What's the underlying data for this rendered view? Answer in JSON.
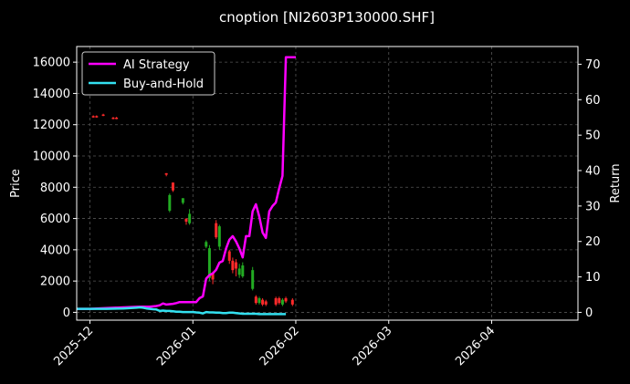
{
  "chart_data": {
    "type": "line",
    "title": "cnoption [NI2603P130000.SHF]",
    "ylabel_left": "Price",
    "ylabel_right": "Return",
    "x_ticks": [
      "2025-12",
      "2026-01",
      "2026-02",
      "2026-03",
      "2026-04"
    ],
    "x_tick_days": [
      0,
      31,
      62,
      90,
      121
    ],
    "xlim_days": [
      -4,
      147
    ],
    "y_left_ticks": [
      "0",
      "2000",
      "4000",
      "6000",
      "8000",
      "10000",
      "12000",
      "14000",
      "16000"
    ],
    "y_left_tick_values": [
      0,
      2000,
      4000,
      6000,
      8000,
      10000,
      12000,
      14000,
      16000
    ],
    "ylim_left": [
      -500,
      17000
    ],
    "y_right_ticks": [
      "0",
      "10",
      "20",
      "30",
      "40",
      "50",
      "60",
      "70"
    ],
    "y_right_tick_values": [
      0,
      10,
      20,
      30,
      40,
      50,
      60,
      70
    ],
    "ylim_right": [
      -2.2,
      75
    ],
    "grid": true,
    "legend_position": "top-left",
    "colors": {
      "strategy": "#ff00ff",
      "buyhold": "#33e0f0",
      "up": "#22aa22",
      "down": "#ff2a2a",
      "grid": "#555555"
    },
    "series": [
      {
        "name": "AI Strategy",
        "x": [
          -4,
          0,
          5,
          10,
          15,
          18,
          20,
          21,
          22,
          23,
          24,
          25,
          26,
          27,
          28,
          29,
          30,
          31,
          32,
          33,
          34,
          35,
          36,
          37,
          38,
          39,
          40,
          41,
          42,
          43,
          44,
          45,
          46,
          47,
          48,
          49,
          50,
          51,
          52,
          53,
          54,
          55,
          56,
          57,
          58,
          59,
          60,
          61,
          62
        ],
        "values": [
          1.0,
          1.0,
          1.2,
          1.4,
          1.6,
          1.6,
          1.8,
          2.0,
          2.5,
          2.2,
          2.3,
          2.4,
          2.6,
          2.9,
          2.9,
          2.9,
          2.9,
          2.9,
          2.9,
          4.0,
          4.5,
          9.5,
          10.5,
          11.0,
          12.0,
          14.0,
          14.5,
          18.0,
          20.5,
          21.5,
          20.0,
          18.0,
          15.5,
          21.5,
          21.5,
          28.5,
          30.5,
          27.0,
          22.5,
          21.0,
          28.5,
          30.0,
          31.0,
          35.0,
          38.5,
          72.0,
          72.0,
          72.0,
          72.0
        ]
      },
      {
        "name": "Buy-and-Hold",
        "x": [
          -4,
          0,
          5,
          10,
          14,
          15,
          16,
          17,
          18,
          19,
          20,
          21,
          22,
          23,
          24,
          25,
          26,
          27,
          28,
          29,
          30,
          31,
          32,
          33,
          34,
          35,
          36,
          37,
          38,
          39,
          40,
          41,
          42,
          43,
          44,
          45,
          46,
          47,
          48,
          49,
          50,
          51,
          52,
          53,
          54,
          55,
          56,
          57,
          58,
          59
        ],
        "values": [
          1.0,
          1.0,
          1.0,
          1.1,
          1.3,
          1.4,
          1.3,
          1.1,
          1.0,
          0.9,
          0.8,
          0.4,
          0.5,
          0.4,
          0.4,
          0.3,
          0.2,
          0.2,
          0.1,
          0.1,
          0.1,
          0.1,
          0.0,
          -0.1,
          -0.3,
          0.1,
          0.0,
          0.0,
          -0.1,
          -0.1,
          -0.2,
          -0.2,
          -0.1,
          -0.1,
          -0.2,
          -0.3,
          -0.4,
          -0.4,
          -0.4,
          -0.4,
          -0.4,
          -0.5,
          -0.5,
          -0.5,
          -0.5,
          -0.5,
          -0.5,
          -0.5,
          -0.5,
          -0.5
        ]
      }
    ],
    "candles": [
      {
        "x": 1,
        "open": 12550,
        "close": 12500,
        "high": 12600,
        "low": 12450,
        "dir": "down"
      },
      {
        "x": 2,
        "open": 12550,
        "close": 12500,
        "high": 12600,
        "low": 12450,
        "dir": "down"
      },
      {
        "x": 4,
        "open": 12650,
        "close": 12600,
        "high": 12700,
        "low": 12550,
        "dir": "down"
      },
      {
        "x": 7,
        "open": 12450,
        "close": 12400,
        "high": 12500,
        "low": 12350,
        "dir": "down"
      },
      {
        "x": 8,
        "open": 12450,
        "close": 12380,
        "high": 12500,
        "low": 12350,
        "dir": "down"
      },
      {
        "x": 23,
        "open": 8900,
        "close": 8800,
        "high": 8900,
        "low": 8700,
        "dir": "down"
      },
      {
        "x": 24,
        "open": 6500,
        "close": 7500,
        "high": 7600,
        "low": 6400,
        "dir": "up"
      },
      {
        "x": 25,
        "open": 8300,
        "close": 7800,
        "high": 8300,
        "low": 7700,
        "dir": "down"
      },
      {
        "x": 28,
        "open": 7000,
        "close": 7300,
        "high": 7300,
        "low": 6900,
        "dir": "up"
      },
      {
        "x": 29,
        "open": 6000,
        "close": 5800,
        "high": 6000,
        "low": 5600,
        "dir": "down"
      },
      {
        "x": 30,
        "open": 5700,
        "close": 6300,
        "high": 6600,
        "low": 5600,
        "dir": "up"
      },
      {
        "x": 35,
        "open": 4200,
        "close": 4500,
        "high": 4600,
        "low": 4100,
        "dir": "up"
      },
      {
        "x": 36,
        "open": 2200,
        "close": 4100,
        "high": 4300,
        "low": 2000,
        "dir": "up"
      },
      {
        "x": 37,
        "open": 2500,
        "close": 2100,
        "high": 2600,
        "low": 1800,
        "dir": "down"
      },
      {
        "x": 38,
        "open": 5700,
        "close": 4800,
        "high": 5900,
        "low": 4700,
        "dir": "down"
      },
      {
        "x": 39,
        "open": 4200,
        "close": 5500,
        "high": 5600,
        "low": 4000,
        "dir": "up"
      },
      {
        "x": 42,
        "open": 3900,
        "close": 3300,
        "high": 4000,
        "low": 3100,
        "dir": "down"
      },
      {
        "x": 43,
        "open": 3300,
        "close": 2700,
        "high": 3500,
        "low": 2500,
        "dir": "down"
      },
      {
        "x": 44,
        "open": 3200,
        "close": 2800,
        "high": 3400,
        "low": 2300,
        "dir": "down"
      },
      {
        "x": 45,
        "open": 2400,
        "close": 2800,
        "high": 3100,
        "low": 2200,
        "dir": "up"
      },
      {
        "x": 46,
        "open": 2300,
        "close": 3000,
        "high": 3200,
        "low": 2200,
        "dir": "up"
      },
      {
        "x": 49,
        "open": 1500,
        "close": 2700,
        "high": 2900,
        "low": 1400,
        "dir": "up"
      },
      {
        "x": 50,
        "open": 1000,
        "close": 600,
        "high": 1100,
        "low": 500,
        "dir": "down"
      },
      {
        "x": 51,
        "open": 600,
        "close": 900,
        "high": 1000,
        "low": 500,
        "dir": "up"
      },
      {
        "x": 52,
        "open": 800,
        "close": 500,
        "high": 900,
        "low": 400,
        "dir": "down"
      },
      {
        "x": 53,
        "open": 700,
        "close": 500,
        "high": 800,
        "low": 400,
        "dir": "down"
      },
      {
        "x": 56,
        "open": 900,
        "close": 500,
        "high": 1000,
        "low": 400,
        "dir": "down"
      },
      {
        "x": 57,
        "open": 900,
        "close": 600,
        "high": 1000,
        "low": 500,
        "dir": "down"
      },
      {
        "x": 58,
        "open": 500,
        "close": 800,
        "high": 900,
        "low": 400,
        "dir": "up"
      },
      {
        "x": 59,
        "open": 900,
        "close": 700,
        "high": 1000,
        "low": 600,
        "dir": "down"
      },
      {
        "x": 61,
        "open": 800,
        "close": 500,
        "high": 900,
        "low": 400,
        "dir": "down"
      }
    ]
  }
}
